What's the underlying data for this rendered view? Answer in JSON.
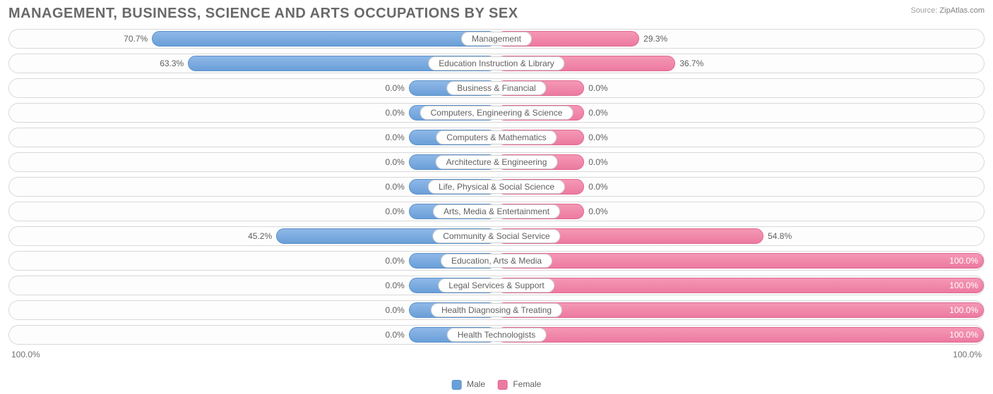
{
  "title": "MANAGEMENT, BUSINESS, SCIENCE AND ARTS OCCUPATIONS BY SEX",
  "source_label": "Source:",
  "source_value": "ZipAtlas.com",
  "axis_left": "100.0%",
  "axis_right": "100.0%",
  "legend": {
    "male": "Male",
    "female": "Female"
  },
  "colors": {
    "male_fill": "#6a9fd8",
    "male_border": "#5a8fc8",
    "female_fill": "#ec7aa0",
    "female_border": "#e06890",
    "row_border": "#d8d8d8",
    "text": "#606060",
    "title": "#696969"
  },
  "chart": {
    "type": "diverging-bar",
    "min_bar_pct": 18,
    "rows": [
      {
        "label": "Management",
        "male_pct": 70.7,
        "female_pct": 29.3,
        "male_text": "70.7%",
        "female_text": "29.3%"
      },
      {
        "label": "Education Instruction & Library",
        "male_pct": 63.3,
        "female_pct": 36.7,
        "male_text": "63.3%",
        "female_text": "36.7%"
      },
      {
        "label": "Business & Financial",
        "male_pct": 0.0,
        "female_pct": 0.0,
        "male_text": "0.0%",
        "female_text": "0.0%"
      },
      {
        "label": "Computers, Engineering & Science",
        "male_pct": 0.0,
        "female_pct": 0.0,
        "male_text": "0.0%",
        "female_text": "0.0%"
      },
      {
        "label": "Computers & Mathematics",
        "male_pct": 0.0,
        "female_pct": 0.0,
        "male_text": "0.0%",
        "female_text": "0.0%"
      },
      {
        "label": "Architecture & Engineering",
        "male_pct": 0.0,
        "female_pct": 0.0,
        "male_text": "0.0%",
        "female_text": "0.0%"
      },
      {
        "label": "Life, Physical & Social Science",
        "male_pct": 0.0,
        "female_pct": 0.0,
        "male_text": "0.0%",
        "female_text": "0.0%"
      },
      {
        "label": "Arts, Media & Entertainment",
        "male_pct": 0.0,
        "female_pct": 0.0,
        "male_text": "0.0%",
        "female_text": "0.0%"
      },
      {
        "label": "Community & Social Service",
        "male_pct": 45.2,
        "female_pct": 54.8,
        "male_text": "45.2%",
        "female_text": "54.8%"
      },
      {
        "label": "Education, Arts & Media",
        "male_pct": 0.0,
        "female_pct": 100.0,
        "male_text": "0.0%",
        "female_text": "100.0%"
      },
      {
        "label": "Legal Services & Support",
        "male_pct": 0.0,
        "female_pct": 100.0,
        "male_text": "0.0%",
        "female_text": "100.0%"
      },
      {
        "label": "Health Diagnosing & Treating",
        "male_pct": 0.0,
        "female_pct": 100.0,
        "male_text": "0.0%",
        "female_text": "100.0%"
      },
      {
        "label": "Health Technologists",
        "male_pct": 0.0,
        "female_pct": 100.0,
        "male_text": "0.0%",
        "female_text": "100.0%"
      }
    ]
  }
}
